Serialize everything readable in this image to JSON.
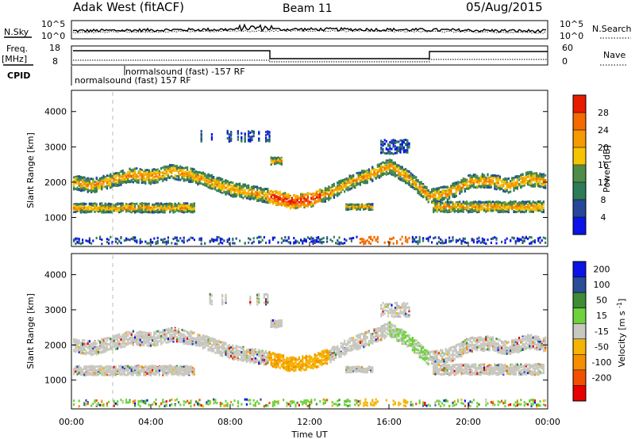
{
  "header": {
    "radar": "Adak West (fitACF)",
    "beam": "Beam 11",
    "date": "05/Aug/2015"
  },
  "top_panel": {
    "left_label": "N.Sky",
    "right_label": "N.Search",
    "left_ticks": [
      "10^5",
      "10^0"
    ],
    "right_ticks": [
      "10^5",
      "10^0"
    ]
  },
  "freq_panel": {
    "left_label_1": "Freq.",
    "left_label_2": "[MHz]",
    "right_label": "Nave",
    "left_ticks": [
      "18",
      "8"
    ],
    "right_ticks": [
      "60",
      "0"
    ]
  },
  "cpid_panel": {
    "label": "CPID",
    "entries": [
      "normalsound (fast) 157 RF",
      "normalsound (fast) -157 RF"
    ]
  },
  "colors": {
    "power": [
      "#0a14e6",
      "#26469a",
      "#2e7b58",
      "#4e8c48",
      "#f5c400",
      "#f59a00",
      "#f56a00",
      "#e81a00"
    ],
    "velocity": [
      "#e80000",
      "#f25000",
      "#f58e00",
      "#f5b400",
      "#c8c8c0",
      "#6ed23c",
      "#3e8c36",
      "#2a4e96",
      "#0a14e6"
    ],
    "ground_scatter": "#c8c8c0"
  },
  "chart_data": [
    {
      "type": "heatmap",
      "name": "Power",
      "x_range_hours": [
        0,
        24
      ],
      "ylabel": "Slant Range [km]",
      "ylim": [
        180,
        4600
      ],
      "yticks": [
        1000,
        2000,
        3000,
        4000
      ],
      "colorbar_label": "Power [dB]",
      "colorbar_ticks": [
        4,
        8,
        12,
        16,
        20,
        24,
        28
      ],
      "colorbar_range": [
        0,
        32
      ],
      "scatter_bands": [
        {
          "t": [
            0,
            1,
            2,
            3,
            4,
            5,
            6,
            7,
            8,
            9,
            10,
            11,
            12,
            13,
            14,
            15,
            16,
            17,
            18,
            19,
            20,
            21,
            22,
            23,
            24
          ],
          "range_km": [
            2000,
            1900,
            2050,
            2200,
            2150,
            2300,
            2200,
            2000,
            1800,
            1700,
            1600,
            1450,
            1500,
            1700,
            2000,
            2200,
            2450,
            2100,
            1600,
            1700,
            2000,
            2050,
            1900,
            2100,
            2000
          ]
        }
      ]
    },
    {
      "type": "heatmap",
      "name": "Velocity",
      "x_range_hours": [
        0,
        24
      ],
      "xlabel": "Time UT",
      "xticks": [
        "00:00",
        "04:00",
        "08:00",
        "12:00",
        "16:00",
        "20:00",
        "00:00"
      ],
      "ylabel": "Slant Range [km]",
      "ylim": [
        180,
        4600
      ],
      "yticks": [
        1000,
        2000,
        3000,
        4000
      ],
      "colorbar_label": "Velocity [m s^-1]",
      "colorbar_ticks": [
        "200",
        "100",
        "50",
        "15",
        "-15",
        "-50",
        "-100",
        "-200"
      ]
    }
  ]
}
